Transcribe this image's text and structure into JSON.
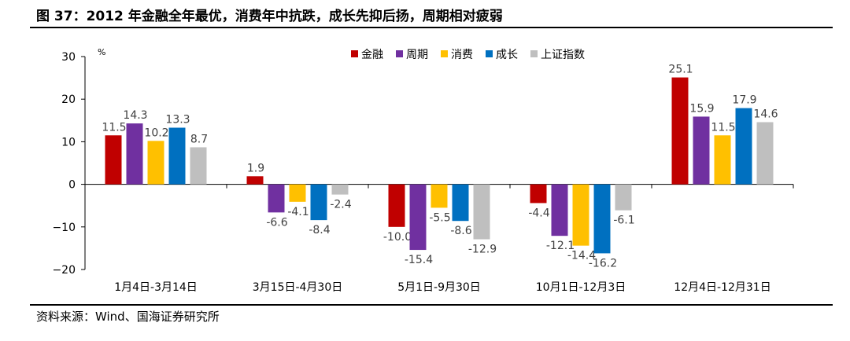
{
  "header": {
    "title": "图 37：2012 年金融全年最优，消费年中抗跌，成长先抑后扬，周期相对疲弱"
  },
  "footer": {
    "source": "资料来源：Wind、国海证券研究所"
  },
  "chart_data": {
    "type": "bar",
    "ylabel": "%",
    "ylim": [
      -20,
      30
    ],
    "yticks": [
      -20,
      -10,
      0,
      10,
      20,
      30
    ],
    "legend_position": "top-right",
    "categories": [
      "1月4日-3月14日",
      "3月15日-4月30日",
      "5月1日-9月30日",
      "10月1日-12月3日",
      "12月4日-12月31日"
    ],
    "series": [
      {
        "name": "金融",
        "color": "#C00000",
        "values": [
          11.5,
          1.9,
          -10.0,
          -4.4,
          25.1
        ]
      },
      {
        "name": "周期",
        "color": "#7030A0",
        "values": [
          14.3,
          -6.6,
          -15.4,
          -12.1,
          15.9
        ]
      },
      {
        "name": "消费",
        "color": "#FFC000",
        "values": [
          10.2,
          -4.1,
          -5.5,
          -14.4,
          11.5
        ]
      },
      {
        "name": "成长",
        "color": "#0070C0",
        "values": [
          13.3,
          -8.4,
          -8.6,
          -16.2,
          17.9
        ]
      },
      {
        "name": "上证指数",
        "color": "#BFBFBF",
        "values": [
          8.7,
          -2.4,
          -12.9,
          -6.1,
          14.6
        ]
      }
    ],
    "data_labels": [
      [
        "11.5",
        "14.3",
        "10.2",
        "13.3",
        "8.7"
      ],
      [
        "1.9",
        "-6.6",
        "-4.1",
        "-8.4",
        "-2.4"
      ],
      [
        "-10.0",
        "-15.4",
        "-5.5",
        "-8.6",
        "-12.9"
      ],
      [
        "-4.4",
        "-12.1",
        "-14.4",
        "-16.2",
        "-6.1"
      ],
      [
        "25.1",
        "15.9",
        "11.5",
        "17.9",
        "14.6"
      ]
    ]
  }
}
